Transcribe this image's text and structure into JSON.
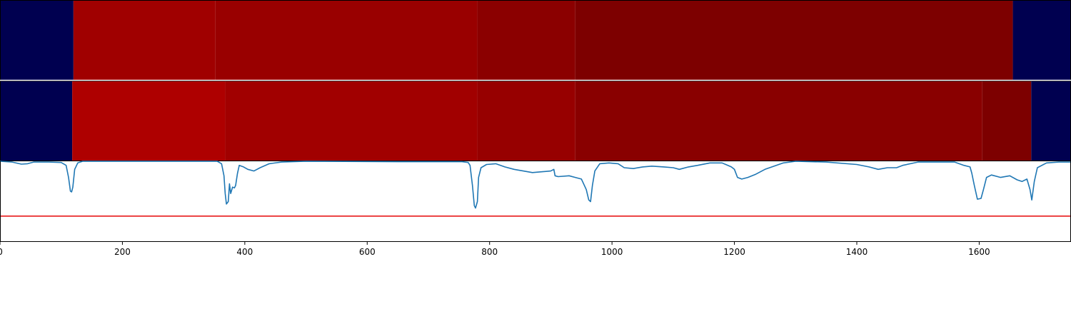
{
  "chart_data": {
    "type": "heatmap",
    "x_range": [
      0,
      1750
    ],
    "x_ticks": [
      0,
      200,
      400,
      600,
      800,
      1000,
      1200,
      1400,
      1600
    ],
    "x_tick_labels": [
      "0",
      "200",
      "400",
      "600",
      "800",
      "1000",
      "1200",
      "1400",
      "1600"
    ],
    "colors": {
      "background_segment": "#000050",
      "separator": "#ffffff",
      "line": "#1f77b4",
      "threshold": "#e8191a",
      "axis": "#000000"
    },
    "heatmap_rows": [
      {
        "segments": [
          {
            "start": 0,
            "end": 120,
            "color": "#000050"
          },
          {
            "start": 120,
            "end": 352,
            "color": "#a00000"
          },
          {
            "start": 352,
            "end": 780,
            "color": "#990000"
          },
          {
            "start": 780,
            "end": 940,
            "color": "#8b0000"
          },
          {
            "start": 940,
            "end": 1655,
            "color": "#7d0000"
          },
          {
            "start": 1655,
            "end": 1750,
            "color": "#000050"
          }
        ]
      },
      {
        "segments": [
          {
            "start": 0,
            "end": 118,
            "color": "#000050"
          },
          {
            "start": 118,
            "end": 368,
            "color": "#ae0000"
          },
          {
            "start": 368,
            "end": 780,
            "color": "#a10000"
          },
          {
            "start": 780,
            "end": 940,
            "color": "#970000"
          },
          {
            "start": 940,
            "end": 1605,
            "color": "#890000"
          },
          {
            "start": 1605,
            "end": 1685,
            "color": "#7d0000"
          },
          {
            "start": 1685,
            "end": 1750,
            "color": "#000050"
          }
        ]
      }
    ],
    "line_series": {
      "y_range": [
        0,
        1
      ],
      "threshold": 0.32,
      "points": [
        [
          0,
          1.0
        ],
        [
          20,
          0.99
        ],
        [
          35,
          0.965
        ],
        [
          45,
          0.97
        ],
        [
          55,
          0.99
        ],
        [
          80,
          0.99
        ],
        [
          100,
          0.985
        ],
        [
          108,
          0.95
        ],
        [
          112,
          0.8
        ],
        [
          115,
          0.63
        ],
        [
          117,
          0.62
        ],
        [
          119,
          0.68
        ],
        [
          122,
          0.9
        ],
        [
          127,
          0.98
        ],
        [
          135,
          1.0
        ],
        [
          300,
          1.0
        ],
        [
          355,
          1.0
        ],
        [
          362,
          0.97
        ],
        [
          366,
          0.82
        ],
        [
          368,
          0.6
        ],
        [
          370,
          0.47
        ],
        [
          373,
          0.5
        ],
        [
          375,
          0.72
        ],
        [
          377,
          0.6
        ],
        [
          380,
          0.68
        ],
        [
          383,
          0.67
        ],
        [
          385,
          0.7
        ],
        [
          388,
          0.85
        ],
        [
          391,
          0.95
        ],
        [
          398,
          0.93
        ],
        [
          405,
          0.9
        ],
        [
          415,
          0.88
        ],
        [
          425,
          0.92
        ],
        [
          440,
          0.97
        ],
        [
          460,
          0.99
        ],
        [
          500,
          1.0
        ],
        [
          650,
          0.995
        ],
        [
          755,
          0.995
        ],
        [
          765,
          0.985
        ],
        [
          768,
          0.95
        ],
        [
          772,
          0.7
        ],
        [
          775,
          0.45
        ],
        [
          777,
          0.42
        ],
        [
          780,
          0.5
        ],
        [
          782,
          0.8
        ],
        [
          786,
          0.92
        ],
        [
          795,
          0.96
        ],
        [
          810,
          0.97
        ],
        [
          825,
          0.93
        ],
        [
          840,
          0.9
        ],
        [
          855,
          0.88
        ],
        [
          870,
          0.86
        ],
        [
          885,
          0.87
        ],
        [
          900,
          0.88
        ],
        [
          905,
          0.9
        ],
        [
          907,
          0.82
        ],
        [
          912,
          0.81
        ],
        [
          930,
          0.82
        ],
        [
          940,
          0.8
        ],
        [
          950,
          0.78
        ],
        [
          958,
          0.65
        ],
        [
          962,
          0.52
        ],
        [
          965,
          0.5
        ],
        [
          968,
          0.7
        ],
        [
          972,
          0.88
        ],
        [
          980,
          0.97
        ],
        [
          995,
          0.98
        ],
        [
          1010,
          0.97
        ],
        [
          1020,
          0.92
        ],
        [
          1035,
          0.91
        ],
        [
          1050,
          0.93
        ],
        [
          1065,
          0.94
        ],
        [
          1085,
          0.93
        ],
        [
          1100,
          0.92
        ],
        [
          1110,
          0.9
        ],
        [
          1125,
          0.93
        ],
        [
          1140,
          0.95
        ],
        [
          1160,
          0.98
        ],
        [
          1180,
          0.98
        ],
        [
          1195,
          0.93
        ],
        [
          1200,
          0.9
        ],
        [
          1205,
          0.8
        ],
        [
          1212,
          0.78
        ],
        [
          1222,
          0.8
        ],
        [
          1235,
          0.84
        ],
        [
          1250,
          0.9
        ],
        [
          1265,
          0.94
        ],
        [
          1280,
          0.98
        ],
        [
          1300,
          1.0
        ],
        [
          1350,
          0.99
        ],
        [
          1400,
          0.96
        ],
        [
          1420,
          0.93
        ],
        [
          1435,
          0.9
        ],
        [
          1450,
          0.92
        ],
        [
          1465,
          0.92
        ],
        [
          1475,
          0.95
        ],
        [
          1500,
          0.99
        ],
        [
          1560,
          0.99
        ],
        [
          1575,
          0.95
        ],
        [
          1585,
          0.93
        ],
        [
          1588,
          0.85
        ],
        [
          1592,
          0.7
        ],
        [
          1597,
          0.53
        ],
        [
          1603,
          0.54
        ],
        [
          1607,
          0.65
        ],
        [
          1612,
          0.8
        ],
        [
          1620,
          0.83
        ],
        [
          1635,
          0.8
        ],
        [
          1650,
          0.82
        ],
        [
          1662,
          0.77
        ],
        [
          1670,
          0.75
        ],
        [
          1678,
          0.78
        ],
        [
          1683,
          0.65
        ],
        [
          1686,
          0.52
        ],
        [
          1690,
          0.75
        ],
        [
          1695,
          0.92
        ],
        [
          1710,
          0.98
        ],
        [
          1730,
          0.99
        ],
        [
          1750,
          0.99
        ]
      ]
    }
  }
}
